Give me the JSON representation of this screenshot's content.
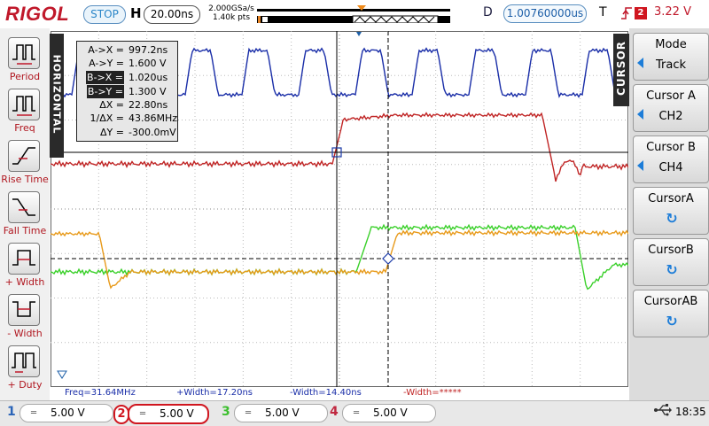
{
  "brand": "RIGOL",
  "status": {
    "run_state": "STOP"
  },
  "horizontal": {
    "label": "H",
    "timebase": "20.00ns",
    "sample_rate": "2.000GSa/s",
    "mem_depth": "1.40k pts"
  },
  "delay": {
    "label": "D",
    "value": "1.00760000us"
  },
  "trigger": {
    "label": "T",
    "edge": "rising-edge-icon",
    "source": "2",
    "level": "3.22 V"
  },
  "left_menu": {
    "tab_label": "HORIZONTAL",
    "items": [
      {
        "label": "Period",
        "icon": "period-icon"
      },
      {
        "label": "Freq",
        "icon": "freq-icon"
      },
      {
        "label": "Rise Time",
        "icon": "rise-time-icon"
      },
      {
        "label": "Fall Time",
        "icon": "fall-time-icon"
      },
      {
        "label": "+ Width",
        "icon": "plus-width-icon"
      },
      {
        "label": "- Width",
        "icon": "minus-width-icon"
      },
      {
        "label": "+ Duty",
        "icon": "plus-duty-icon"
      }
    ]
  },
  "cursor_readout": {
    "rows": [
      {
        "key": "A->X =",
        "value": "997.2ns",
        "highlight": false
      },
      {
        "key": "A->Y =",
        "value": "1.600 V",
        "highlight": false
      },
      {
        "key": "B->X =",
        "value": "1.020us",
        "highlight": true
      },
      {
        "key": "B->Y =",
        "value": "1.300 V",
        "highlight": true
      },
      {
        "key": "ΔX =",
        "value": "22.80ns",
        "highlight": false
      },
      {
        "key": "1/ΔX =",
        "value": "43.86MHz",
        "highlight": false
      },
      {
        "key": "ΔY =",
        "value": "-300.0mV",
        "highlight": false
      }
    ]
  },
  "measurements": {
    "freq": "Freq=31.64MHz",
    "pwidth": "+Width=17.20ns",
    "nwidth": "-Width=14.40ns",
    "pwidth_invalid": "-Width=*****"
  },
  "right_menu": {
    "tab_label": "CURSOR",
    "buttons": [
      {
        "title": "Mode",
        "value": "Track",
        "has_arrow": true
      },
      {
        "title": "Cursor A",
        "value": "CH2",
        "has_arrow": true
      },
      {
        "title": "Cursor B",
        "value": "CH4",
        "has_arrow": true
      },
      {
        "title": "CursorA",
        "value": "",
        "rotary": true
      },
      {
        "title": "CursorB",
        "value": "",
        "rotary": true
      },
      {
        "title": "CursorAB",
        "value": "",
        "rotary": true
      }
    ]
  },
  "channels": [
    {
      "num": "1",
      "scale": "5.00 V",
      "color": "#2a64b8",
      "active": false
    },
    {
      "num": "2",
      "scale": "5.00 V",
      "color": "#d0161f",
      "active": true
    },
    {
      "num": "3",
      "scale": "5.00 V",
      "color": "#3cbf2e",
      "active": false
    },
    {
      "num": "4",
      "scale": "5.00 V",
      "color": "#c02840",
      "active": false
    }
  ],
  "system": {
    "time": "18:35",
    "usb_icon": "usb-icon"
  },
  "colors": {
    "ch1": "#1a2ea8",
    "ch2": "#c02424",
    "ch3": "#3ad02a",
    "ch4": "#e89a1a",
    "accent": "#1d7dd8"
  }
}
